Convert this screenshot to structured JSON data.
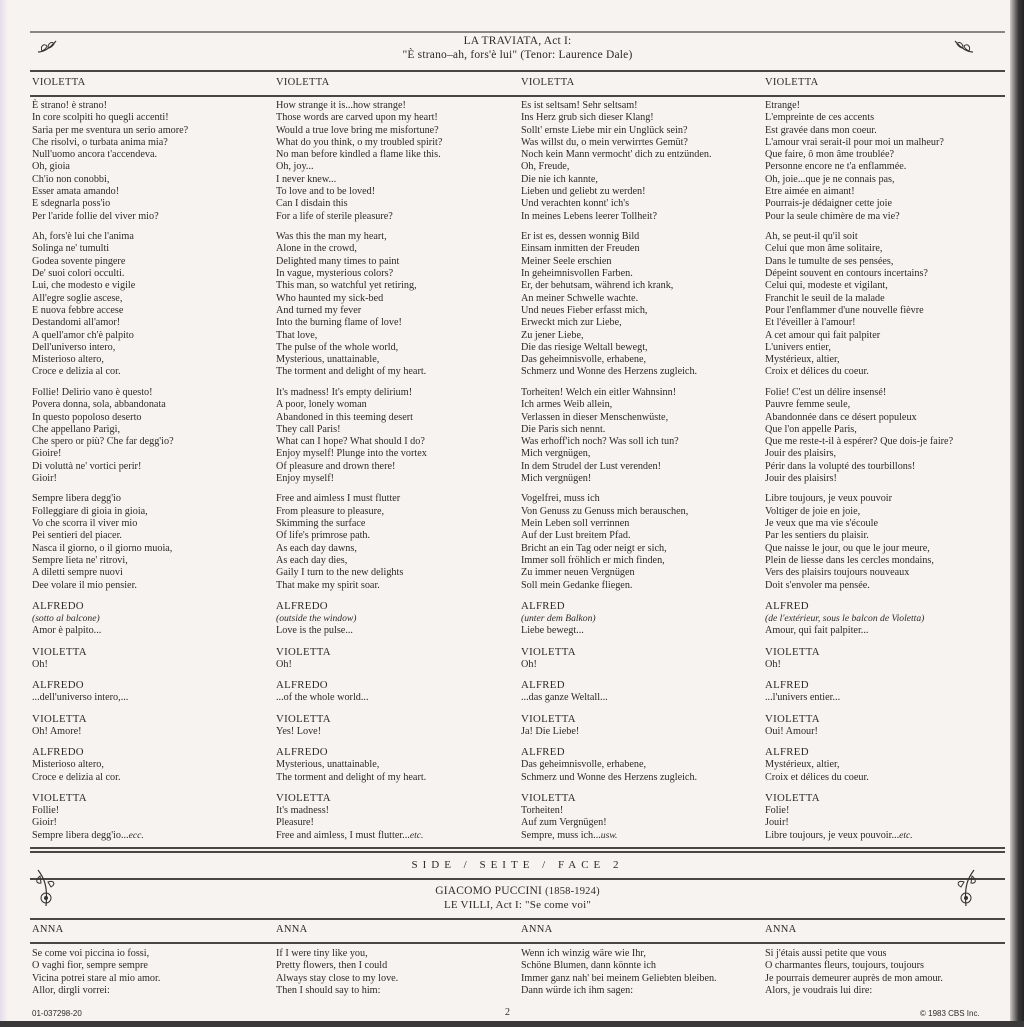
{
  "traviata": {
    "title": "LA TRAVIATA, Act I:",
    "subtitle": "\"È strano–ah, fors'è lui\" (Tenor: Laurence Dale)",
    "headers": [
      "VIOLETTA",
      "VIOLETTA",
      "VIOLETTA",
      "VIOLETTA"
    ],
    "rows": [
      {
        "cols": [
          {
            "lines": [
              "È strano! è strano!",
              "In core scolpiti ho quegli accenti!",
              "Saria per me sventura un serio amore?",
              "Che risolvi, o turbata anima mia?",
              "Null'uomo ancora t'accendeva.",
              "Oh, gioia",
              "Ch'io non conobbi,",
              "Esser amata amando!",
              "E sdegnarla poss'io",
              "Per l'aride follie del viver mio?"
            ]
          },
          {
            "lines": [
              "How strange it is...how strange!",
              "Those words are carved upon my heart!",
              "Would a true love bring me misfortune?",
              "What do you think, o my troubled spirit?",
              "No man before kindled a flame like this.",
              "Oh, joy...",
              "I never knew...",
              "To love and to be loved!",
              "Can I disdain this",
              "For a life of sterile pleasure?"
            ]
          },
          {
            "lines": [
              "Es ist seltsam! Sehr seltsam!",
              "Ins Herz grub sich dieser Klang!",
              "Sollt' ernste Liebe mir ein Unglück sein?",
              "Was willst du, o mein verwirrtes Gemüt?",
              "Noch kein Mann vermocht' dich zu entzünden.",
              "Oh, Freude,",
              "Die nie ich kannte,",
              "Lieben und geliebt zu werden!",
              "Und verachten konnt' ich's",
              "In meines Lebens leerer Tollheit?"
            ]
          },
          {
            "lines": [
              "Etrange!",
              "L'empreinte de ces accents",
              "Est gravée dans mon coeur.",
              "L'amour vrai serait-il pour moi un malheur?",
              "Que faire, ô mon âme troublée?",
              "Personne encore ne t'a enflammée.",
              "Oh, joie...que je ne connais pas,",
              "Etre aimée en aimant!",
              "Pourrais-je dédaigner cette joie",
              "Pour la seule chimère de ma vie?"
            ]
          }
        ]
      },
      {
        "cols": [
          {
            "lines": [
              "Ah, fors'è lui che l'anima",
              "Solinga ne' tumulti",
              "Godea sovente pingere",
              "De' suoi colori occulti.",
              "Lui, che modesto e vigile",
              "All'egre soglie ascese,",
              "E nuova febbre accese",
              "Destandomi all'amor!",
              "A quell'amor ch'è palpito",
              "Dell'universo intero,",
              "Misterioso altero,",
              "Croce e delizia al cor."
            ]
          },
          {
            "lines": [
              "Was this the man my heart,",
              "Alone in the crowd,",
              "Delighted many times to paint",
              "In vague, mysterious colors?",
              "This man, so watchful yet retiring,",
              "Who haunted my sick-bed",
              "And turned my fever",
              "Into the burning flame of love!",
              "That love,",
              "The pulse of the whole world,",
              "Mysterious, unattainable,",
              "The torment and delight of my heart."
            ]
          },
          {
            "lines": [
              "Er ist es, dessen wonnig Bild",
              "Einsam inmitten der Freuden",
              "Meiner Seele erschien",
              "In geheimnisvollen Farben.",
              "Er, der behutsam, während ich krank,",
              "An meiner Schwelle wachte.",
              "Und neues Fieber erfasst mich,",
              "Erweckt mich zur Liebe,",
              "Zu jener Liebe,",
              "Die das riesige Weltall bewegt,",
              "Das geheimnisvolle, erhabene,",
              "Schmerz und Wonne des Herzens zugleich."
            ]
          },
          {
            "lines": [
              "Ah, se peut-il qu'il soit",
              "Celui que mon âme solitaire,",
              "Dans le tumulte de ses pensées,",
              "Dépeint souvent en contours incertains?",
              "Celui qui, modeste et vigilant,",
              "Franchit le seuil de la malade",
              "Pour l'enflammer d'une nouvelle fièvre",
              "Et l'éveiller à l'amour!",
              "A cet amour qui fait palpiter",
              "L'univers entier,",
              "Mystérieux, altier,",
              "Croix et délices du coeur."
            ]
          }
        ]
      },
      {
        "cols": [
          {
            "lines": [
              "Follie! Delirio vano è questo!",
              "Povera donna, sola, abbandonata",
              "In questo popoloso deserto",
              "Che appellano Parigi,",
              "Che spero or più? Che far degg'io?",
              "Gioire!",
              "Di voluttà ne' vortici perir!",
              "Gioir!"
            ]
          },
          {
            "lines": [
              "It's madness! It's empty delirium!",
              "A poor, lonely woman",
              "Abandoned in this teeming desert",
              "They call Paris!",
              "What can I hope? What should I do?",
              "Enjoy myself! Plunge into the vortex",
              "Of pleasure and drown there!",
              "Enjoy myself!"
            ]
          },
          {
            "lines": [
              "Torheiten! Welch ein eitler Wahnsinn!",
              "Ich armes Weib allein,",
              "Verlassen in dieser Menschenwüste,",
              "Die Paris sich nennt.",
              "Was erhoff'ich noch? Was soll ich tun?",
              "Mich vergnügen,",
              "In dem Strudel der Lust verenden!",
              "Mich vergnügen!"
            ]
          },
          {
            "lines": [
              "Folie! C'est un délire insensé!",
              "Pauvre femme seule,",
              "Abandonnée dans ce désert populeux",
              "Que l'on appelle Paris,",
              "Que me reste-t-il à espérer? Que dois-je faire?",
              "Jouir des plaisirs,",
              "Périr dans la volupté des tourbillons!",
              "Jouir des plaisirs!"
            ]
          }
        ]
      },
      {
        "cols": [
          {
            "lines": [
              "Sempre libera degg'io",
              "Folleggiare di gioia in gioia,",
              "Vo che scorra il viver mio",
              "Pei sentieri del piacer.",
              "Nasca il giorno, o il giorno muoia,",
              "Sempre lieta ne' ritrovi,",
              "A diletti sempre nuovi",
              "Dee volare il mio pensier."
            ]
          },
          {
            "lines": [
              "Free and aimless I must flutter",
              "From pleasure to pleasure,",
              "Skimming the surface",
              "Of life's primrose path.",
              "As each day dawns,",
              "As each day dies,",
              "Gaily I turn to the new delights",
              "That make my spirit soar."
            ]
          },
          {
            "lines": [
              "Vogelfrei, muss ich",
              "Von Genuss zu Genuss mich berauschen,",
              "Mein Leben soll verrinnen",
              "Auf der Lust breitem Pfad.",
              "Bricht an ein Tag oder neigt er sich,",
              "Immer soll fröhlich er mich finden,",
              "Zu immer neuen Vergnügen",
              "Soll mein Gedanke fliegen."
            ]
          },
          {
            "lines": [
              "Libre toujours, je veux pouvoir",
              "Voltiger de joie en joie,",
              "Je veux que ma vie s'écoule",
              "Par les sentiers du plaisir.",
              "Que naisse le jour, ou que le jour meure,",
              "Plein de liesse dans les cercles mondains,",
              "Vers des plaisirs toujours nouveaux",
              "Doit s'envoler ma pensée."
            ]
          }
        ]
      },
      {
        "cols": [
          {
            "speaker": "ALFREDO",
            "direction": "(sotto al balcone)",
            "lines": [
              "Amor è palpito..."
            ]
          },
          {
            "speaker": "ALFREDO",
            "direction": "(outside the window)",
            "lines": [
              "Love is the pulse..."
            ]
          },
          {
            "speaker": "ALFRED",
            "direction": "(unter dem Balkon)",
            "lines": [
              "Liebe bewegt..."
            ]
          },
          {
            "speaker": "ALFRED",
            "direction": "(de l'extérieur, sous le balcon de Violetta)",
            "lines": [
              "Amour, qui fait palpiter..."
            ]
          }
        ]
      },
      {
        "cols": [
          {
            "speaker": "VIOLETTA",
            "lines": [
              "Oh!"
            ]
          },
          {
            "speaker": "VIOLETTA",
            "lines": [
              "Oh!"
            ]
          },
          {
            "speaker": "VIOLETTA",
            "lines": [
              "Oh!"
            ]
          },
          {
            "speaker": "VIOLETTA",
            "lines": [
              "Oh!"
            ]
          }
        ]
      },
      {
        "cols": [
          {
            "speaker": "ALFREDO",
            "lines": [
              "...dell'universo intero,..."
            ]
          },
          {
            "speaker": "ALFREDO",
            "lines": [
              "...of the whole world..."
            ]
          },
          {
            "speaker": "ALFRED",
            "lines": [
              "...das ganze Weltall..."
            ]
          },
          {
            "speaker": "ALFRED",
            "lines": [
              "...l'univers entier..."
            ]
          }
        ]
      },
      {
        "cols": [
          {
            "speaker": "VIOLETTA",
            "lines": [
              "Oh! Amore!"
            ]
          },
          {
            "speaker": "VIOLETTA",
            "lines": [
              "Yes! Love!"
            ]
          },
          {
            "speaker": "VIOLETTA",
            "lines": [
              "Ja! Die Liebe!"
            ]
          },
          {
            "speaker": "VIOLETTA",
            "lines": [
              "Oui! Amour!"
            ]
          }
        ]
      },
      {
        "cols": [
          {
            "speaker": "ALFREDO",
            "lines": [
              "Misterioso altero,",
              "Croce e delizia al cor."
            ]
          },
          {
            "speaker": "ALFREDO",
            "lines": [
              "Mysterious, unattainable,",
              "The torment and delight of my heart."
            ]
          },
          {
            "speaker": "ALFRED",
            "lines": [
              "Das geheimnisvolle, erhabene,",
              "Schmerz und Wonne des Herzens zugleich."
            ]
          },
          {
            "speaker": "ALFRED",
            "lines": [
              "Mystérieux, altier,",
              "Croix et délices du coeur."
            ]
          }
        ]
      },
      {
        "cols": [
          {
            "speaker": "VIOLETTA",
            "lines": [
              "Follie!",
              "Gioir!",
              {
                "text": "Sempre libera degg'io...",
                "em": "ecc."
              }
            ]
          },
          {
            "speaker": "VIOLETTA",
            "lines": [
              "It's madness!",
              "Pleasure!",
              {
                "text": "Free and aimless, I must flutter...",
                "em": "etc."
              }
            ]
          },
          {
            "speaker": "VIOLETTA",
            "lines": [
              "Torheiten!",
              "Auf zum Vergnügen!",
              {
                "text": "Sempre, muss ich...",
                "em": "usw."
              }
            ]
          },
          {
            "speaker": "VIOLETTA",
            "lines": [
              "Folie!",
              "Jouir!",
              {
                "text": "Libre toujours, je veux pouvoir...",
                "em": "etc."
              }
            ]
          }
        ]
      }
    ]
  },
  "side": {
    "label": "SIDE / SEITE / FACE 2"
  },
  "villi": {
    "composer": "GIACOMO PUCCINI",
    "dates": "(1858-1924)",
    "subtitle": "LE VILLI, Act I: \"Se come voi\"",
    "headers": [
      "ANNA",
      "ANNA",
      "ANNA",
      "ANNA"
    ],
    "cols": [
      {
        "lines": [
          "Se come voi piccina io fossi,",
          "O vaghi fior, sempre sempre",
          "Vicina potrei stare al mio amor.",
          "Allor, dirgli vorrei:"
        ]
      },
      {
        "lines": [
          "If I were tiny like you,",
          "Pretty flowers, then I could",
          "Always stay close to my love.",
          "Then I should say to him:"
        ]
      },
      {
        "lines": [
          "Wenn ich winzig wäre wie Ihr,",
          "Schöne Blumen, dann könnte ich",
          "Immer ganz nah' bei meinem Geliebten bleiben.",
          "Dann würde ich ihm sagen:"
        ]
      },
      {
        "lines": [
          "Si j'étais aussi petite que vous",
          "O charmantes fleurs, toujours, toujours",
          "Je pourrais demeurer auprès de mon amour.",
          "Alors, je voudrais lui dire:"
        ]
      }
    ]
  },
  "footer": {
    "catalog": "01-037298-20",
    "page": "2",
    "copyright": "© 1983 CBS Inc."
  },
  "icons": {
    "header_ornament": "leaf-sprig-icon",
    "side_ornament": "flower-sprig-icon"
  },
  "colors": {
    "paper": "#f6f3f0",
    "ink": "#2c2a2a"
  }
}
